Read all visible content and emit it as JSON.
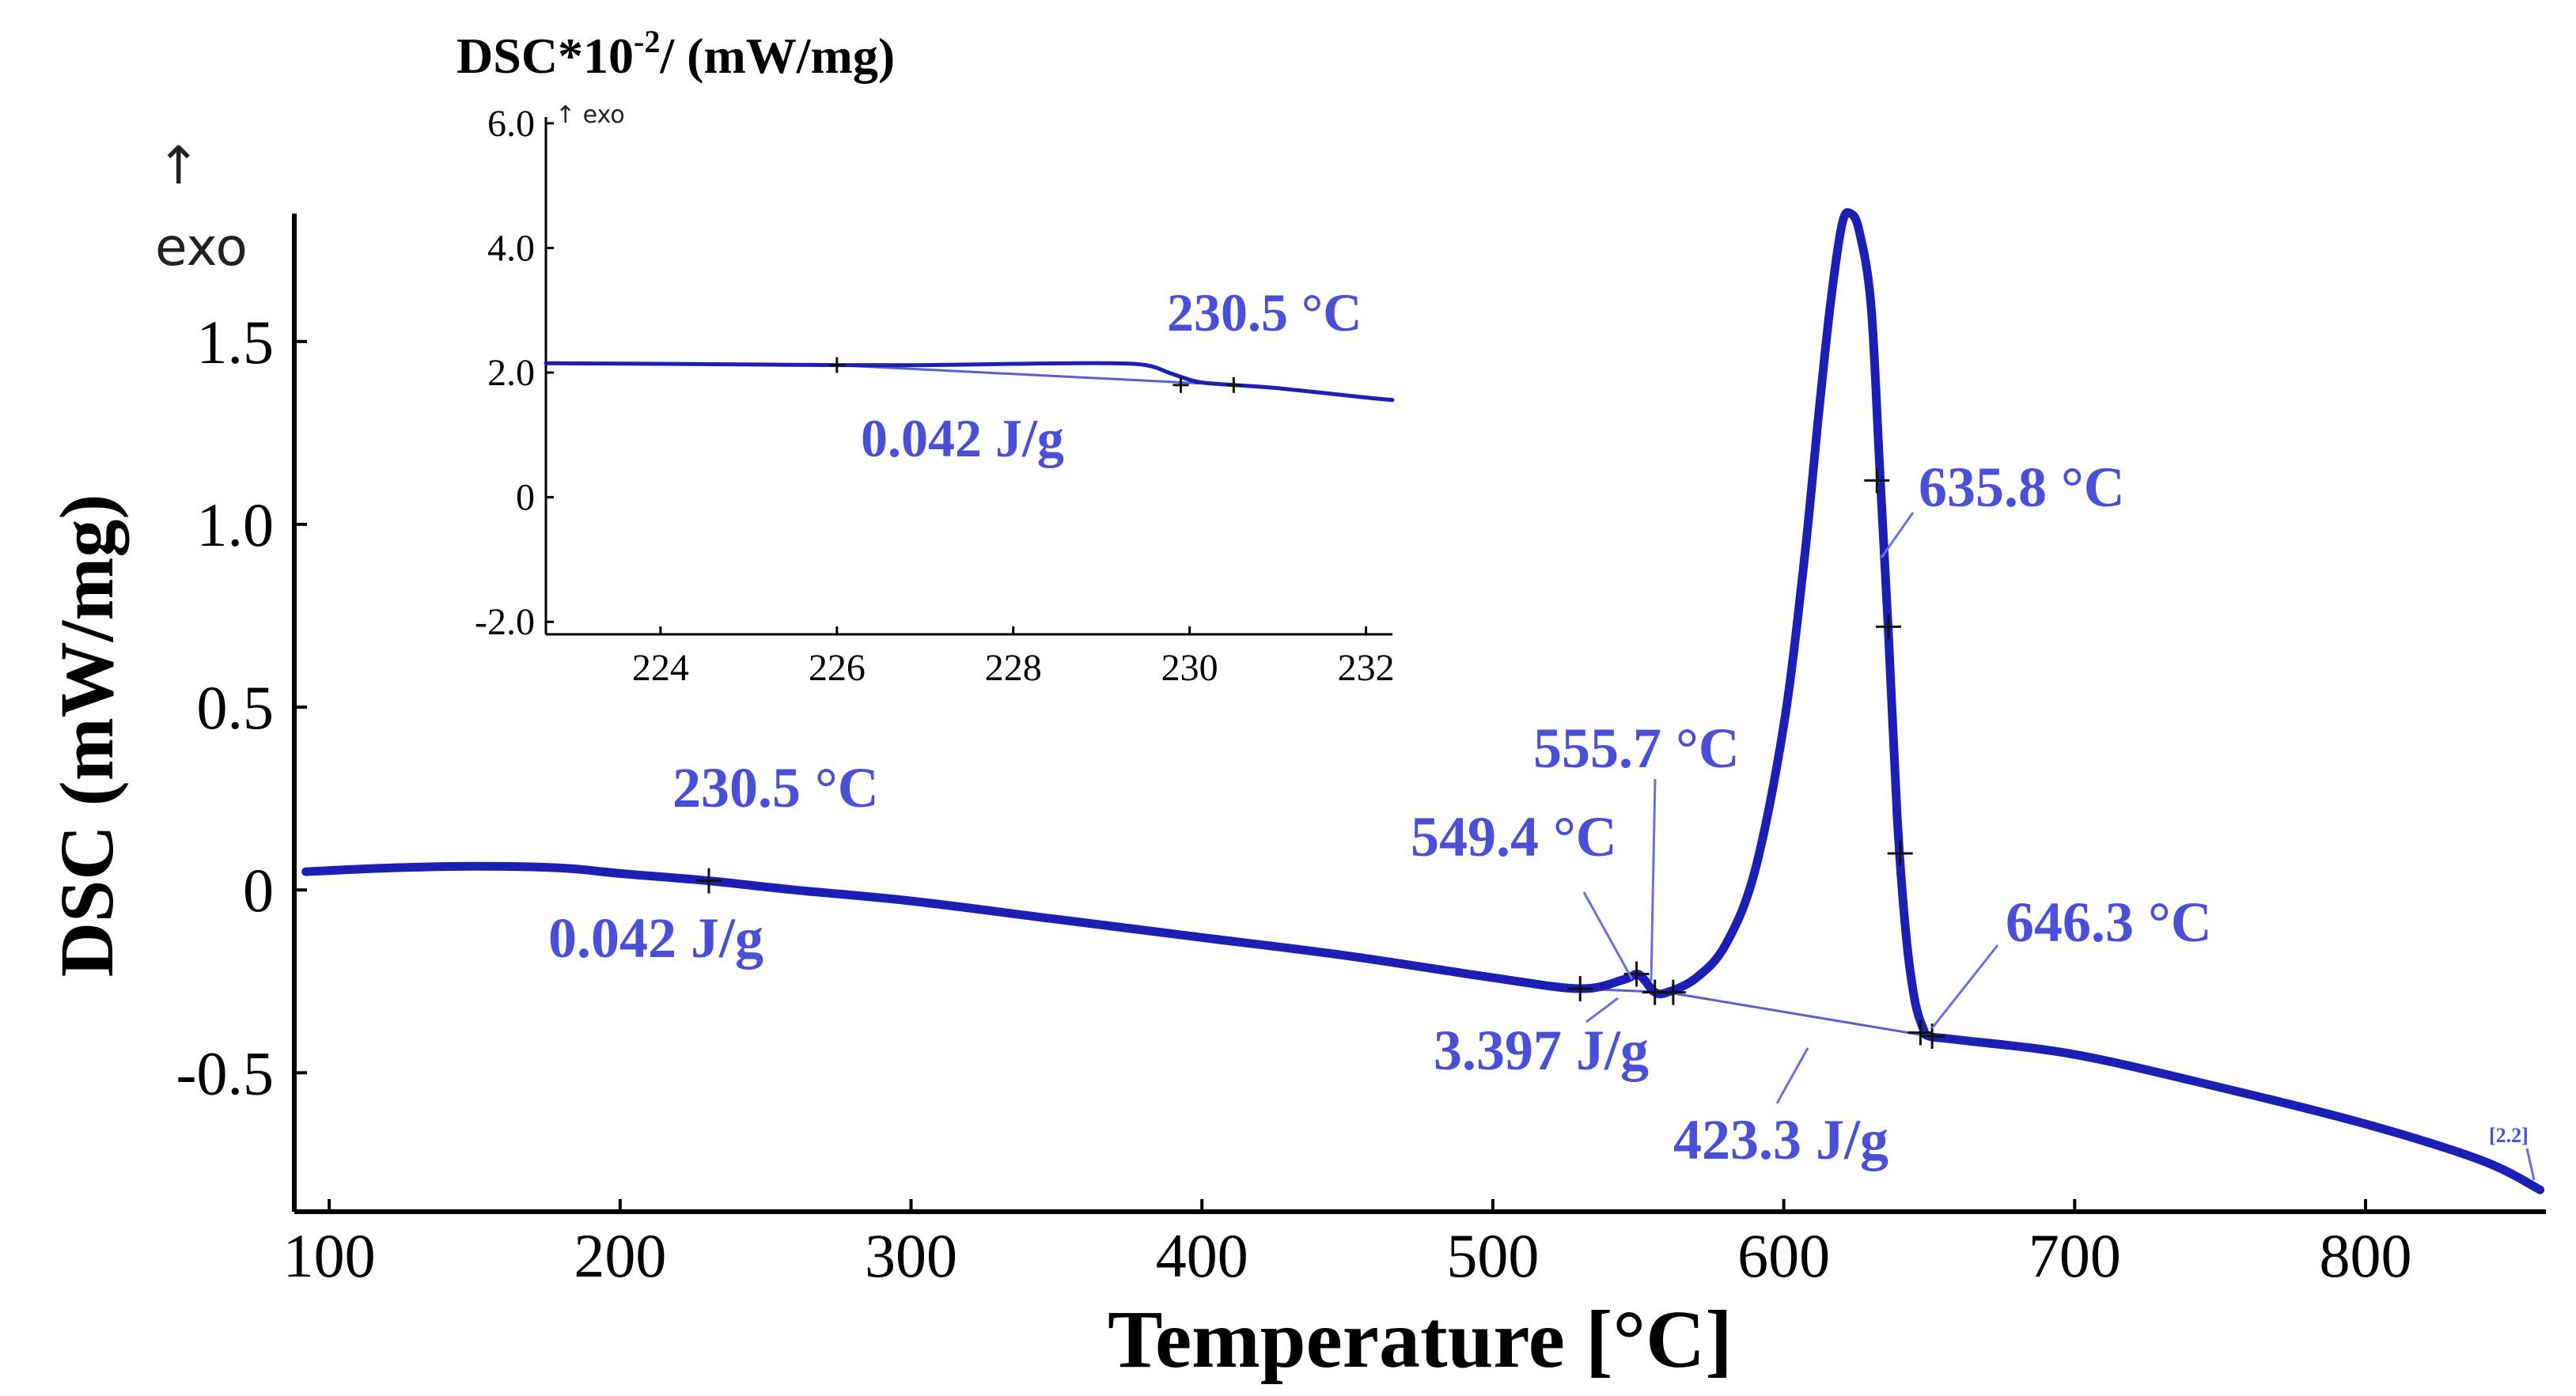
{
  "chart_data": [
    {
      "type": "line",
      "title": "",
      "xlabel": "Temperature [°C]",
      "ylabel": "DSC (mW/mg)",
      "exo_label": "exo",
      "exo_arrow": "↑",
      "xlim": [
        88,
        862
      ],
      "ylim": [
        -0.88,
        1.85
      ],
      "xticks": [
        100,
        200,
        300,
        400,
        500,
        600,
        700,
        800
      ],
      "xtick_labels": [
        "100",
        "200",
        "300",
        "400",
        "500",
        "600",
        "700",
        "800"
      ],
      "yticks": [
        1.5,
        1.0,
        0.5,
        0,
        -0.5
      ],
      "ytick_labels": [
        "1.5",
        "1.0",
        "0.5",
        "0",
        "-0.5"
      ],
      "series": [
        {
          "name": "DSC",
          "x": [
            92,
            120,
            150,
            180,
            200,
            230.5,
            260,
            300,
            350,
            400,
            450,
            500,
            530,
            545,
            549.4,
            552,
            555.7,
            560,
            570,
            580,
            590,
            600,
            607,
            612,
            616,
            620,
            623,
            626,
            630,
            633,
            636,
            639,
            642,
            645,
            648,
            650,
            660,
            700,
            750,
            800,
            840,
            860
          ],
          "y": [
            0.05,
            0.06,
            0.065,
            0.06,
            0.045,
            0.025,
            0.0,
            -0.03,
            -0.08,
            -0.13,
            -0.18,
            -0.24,
            -0.27,
            -0.245,
            -0.23,
            -0.245,
            -0.28,
            -0.28,
            -0.24,
            -0.15,
            0.05,
            0.45,
            0.9,
            1.3,
            1.6,
            1.82,
            1.85,
            1.8,
            1.6,
            1.15,
            0.7,
            0.2,
            -0.12,
            -0.3,
            -0.38,
            -0.4,
            -0.41,
            -0.45,
            -0.54,
            -0.64,
            -0.74,
            -0.82
          ]
        }
      ],
      "baselines": [
        {
          "name": "small-peak baseline",
          "x": [
            530,
            560
          ],
          "y": [
            -0.27,
            -0.28
          ]
        },
        {
          "name": "main-peak baseline",
          "x": [
            560,
            650
          ],
          "y": [
            -0.28,
            -0.4
          ]
        }
      ],
      "markers": [
        {
          "x": 230.5,
          "y": 0.025
        },
        {
          "x": 530,
          "y": -0.27
        },
        {
          "x": 549.4,
          "y": -0.23
        },
        {
          "x": 555.7,
          "y": -0.28
        },
        {
          "x": 562,
          "y": -0.28
        },
        {
          "x": 632,
          "y": 1.12
        },
        {
          "x": 636,
          "y": 0.72
        },
        {
          "x": 640,
          "y": 0.1
        },
        {
          "x": 647,
          "y": -0.39
        },
        {
          "x": 651,
          "y": -0.4
        }
      ],
      "annotations": [
        {
          "name": "onset-230",
          "text": "230.5 °C"
        },
        {
          "name": "enthalpy-230",
          "text": "0.042 J/g"
        },
        {
          "name": "peak-555",
          "text": "555.7 °C"
        },
        {
          "name": "peak-549",
          "text": "549.4 °C"
        },
        {
          "name": "enthalpy-3397",
          "text": "3.397 J/g"
        },
        {
          "name": "peak-635",
          "text": "635.8 °C"
        },
        {
          "name": "peak-646",
          "text": "646.3 °C"
        },
        {
          "name": "enthalpy-4233",
          "text": "423.3 J/g"
        },
        {
          "name": "segment-tag",
          "text": "[2.2]"
        }
      ]
    },
    {
      "type": "line",
      "title": "DSC*10-2/ (mW/mg)",
      "ylabel_base": "DSC*10",
      "ylabel_exp": "-2",
      "ylabel_unit": "/ (mW/mg)",
      "exo_label": "↑ exo",
      "xlim": [
        222.7,
        232.3
      ],
      "ylim": [
        -2.2,
        6.1
      ],
      "xticks": [
        224,
        226,
        228,
        230,
        232
      ],
      "xtick_labels": [
        "224",
        "226",
        "228",
        "230",
        "232"
      ],
      "yticks": [
        6.0,
        4.0,
        2.0,
        0,
        -2.0
      ],
      "ytick_labels": [
        "6.0",
        "4.0",
        "2.0",
        "0",
        "-2.0"
      ],
      "series": [
        {
          "name": "DSC x10^-2",
          "x": [
            222.7,
            224,
            226,
            227,
            228,
            229,
            229.5,
            229.8,
            230.1,
            230.5,
            231,
            232,
            232.3
          ],
          "y": [
            2.15,
            2.14,
            2.12,
            2.12,
            2.14,
            2.15,
            2.12,
            1.98,
            1.85,
            1.8,
            1.75,
            1.6,
            1.56
          ]
        }
      ],
      "baselines": [
        {
          "name": "inset baseline",
          "x": [
            226,
            230.5
          ],
          "y": [
            2.12,
            1.8
          ]
        }
      ],
      "markers": [
        {
          "x": 226,
          "y": 2.12
        },
        {
          "x": 229.9,
          "y": 1.8
        },
        {
          "x": 230.5,
          "y": 1.8
        }
      ],
      "annotations": [
        {
          "name": "inset-onset",
          "text": "230.5 °C"
        },
        {
          "name": "inset-enthalpy",
          "text": "0.042 J/g"
        }
      ]
    }
  ],
  "colors": {
    "curve": "#1c1fb4",
    "annotation": "#4a4fd8",
    "axis": "#000000"
  }
}
